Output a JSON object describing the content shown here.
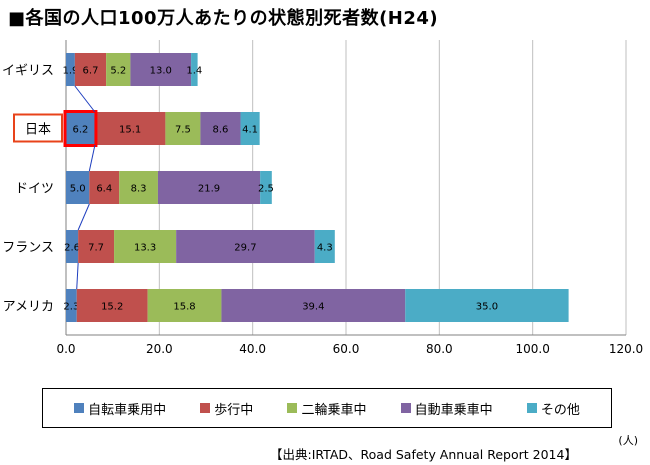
{
  "header": {
    "title": "■各国の人口100万人あたりの状態別死者数(H24)"
  },
  "chart_data": {
    "type": "bar",
    "orientation": "horizontal",
    "stacked": true,
    "categories": [
      "イギリス",
      "日本",
      "ドイツ",
      "フランス",
      "アメリカ"
    ],
    "highlight_category": "日本",
    "series": [
      {
        "name": "自転車乗用中",
        "color": "#4f81bd",
        "values": [
          1.9,
          6.2,
          5.0,
          2.6,
          2.3
        ]
      },
      {
        "name": "歩行中",
        "color": "#c0504d",
        "values": [
          6.7,
          15.1,
          6.4,
          7.7,
          15.2
        ]
      },
      {
        "name": "二輪乗車中",
        "color": "#9bbb59",
        "values": [
          5.2,
          7.5,
          8.3,
          13.3,
          15.8
        ]
      },
      {
        "name": "自動車乗車中",
        "color": "#8064a2",
        "values": [
          13.0,
          8.6,
          21.9,
          29.7,
          39.4
        ]
      },
      {
        "name": "その他",
        "color": "#4bacc6",
        "values": [
          1.4,
          4.1,
          2.5,
          4.3,
          35.0
        ]
      }
    ],
    "xlim": [
      0,
      120
    ],
    "xticks": [
      "0.0",
      "20.0",
      "40.0",
      "60.0",
      "80.0",
      "100.0",
      "120.0"
    ],
    "grid": true,
    "legend_position": "bottom",
    "unit": "(人)",
    "source": "【出典:IRTAD、Road Safety Annual Report 2014】"
  }
}
